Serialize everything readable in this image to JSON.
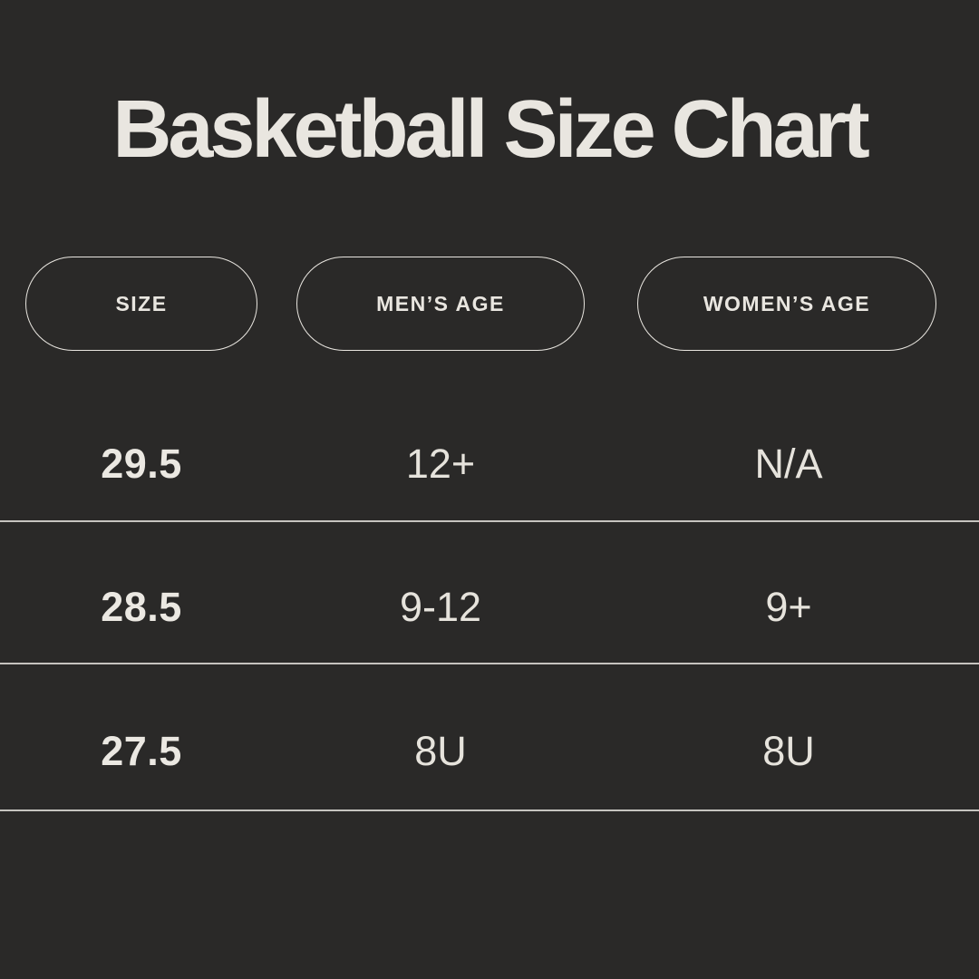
{
  "title": "Basketball Size Chart",
  "colors": {
    "background": "#2a2928",
    "text": "#e9e6e0",
    "pill_border": "#e9e6e0",
    "divider": "#d3d0ca"
  },
  "table": {
    "columns": [
      "SIZE",
      "MEN’S AGE",
      "WOMEN’S AGE"
    ],
    "rows": [
      [
        "29.5",
        "12+",
        "N/A"
      ],
      [
        "28.5",
        "9-12",
        "9+"
      ],
      [
        "27.5",
        "8U",
        "8U"
      ]
    ]
  },
  "chart_data": {
    "type": "table",
    "title": "Basketball Size Chart",
    "columns": [
      "SIZE",
      "MEN’S AGE",
      "WOMEN’S AGE"
    ],
    "rows": [
      {
        "size": "29.5",
        "mens_age": "12+",
        "womens_age": "N/A"
      },
      {
        "size": "28.5",
        "mens_age": "9-12",
        "womens_age": "9+"
      },
      {
        "size": "27.5",
        "mens_age": "8U",
        "womens_age": "8U"
      }
    ],
    "layout": {
      "header_style": "outlined-pill",
      "row_dividers": true,
      "theme": "dark"
    }
  }
}
